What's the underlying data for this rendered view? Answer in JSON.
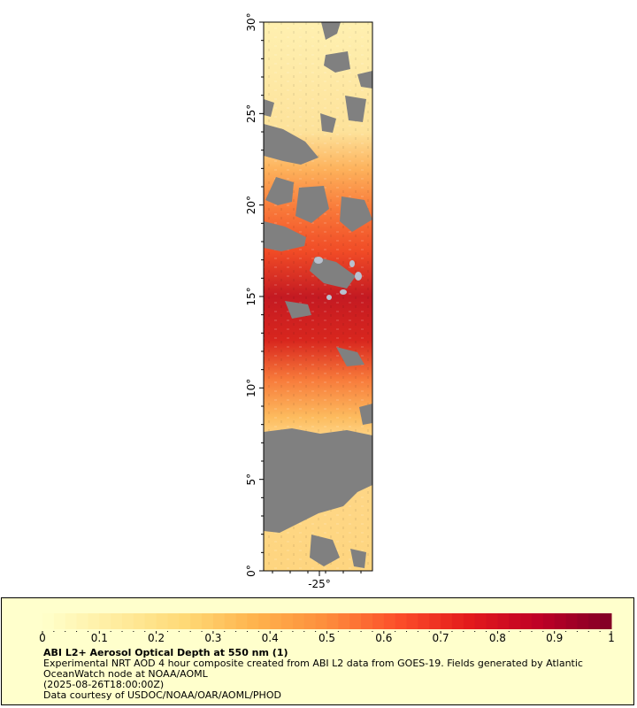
{
  "map": {
    "lat_range": [
      0,
      30
    ],
    "lon_center": -25,
    "lat_ticks": [
      "0°",
      "5°",
      "10°",
      "15°",
      "20°",
      "25°",
      "30°"
    ],
    "lon_ticks": [
      "-25°"
    ],
    "land_or_missing_color": "#808080",
    "aod_bands": [
      {
        "lat_from": 30,
        "lat_to": 23,
        "aod": 0.05
      },
      {
        "lat_from": 23,
        "lat_to": 20,
        "aod": 0.4
      },
      {
        "lat_from": 20,
        "lat_to": 17,
        "aod": 0.55
      },
      {
        "lat_from": 17,
        "lat_to": 11,
        "aod": 0.78
      },
      {
        "lat_from": 11,
        "lat_to": 7.5,
        "aod": 0.35
      },
      {
        "lat_from": 7.5,
        "lat_to": 0,
        "aod": 0.15
      }
    ]
  },
  "legend": {
    "ticks": [
      "0",
      "0.1",
      "0.2",
      "0.3",
      "0.4",
      "0.5",
      "0.6",
      "0.7",
      "0.8",
      "0.9",
      "1"
    ],
    "range": [
      0,
      1
    ],
    "colors": [
      "#ffffcc",
      "#ffeda0",
      "#fed976",
      "#feb24c",
      "#fd8d3c",
      "#fc4e2a",
      "#e31a1c",
      "#bd0026",
      "#800026"
    ],
    "title": "ABI L2+ Aerosol Optical Depth at 550 nm (1)",
    "description": "Experimental NRT AOD 4 hour composite created from ABI L2 data from GOES-19. Fields generated by Atlantic OceanWatch node at NOAA/AOML",
    "timestamp": "(2025-08-26T18:00:00Z)",
    "credit": "Data courtesy of USDOC/NOAA/OAR/AOML/PHOD"
  }
}
